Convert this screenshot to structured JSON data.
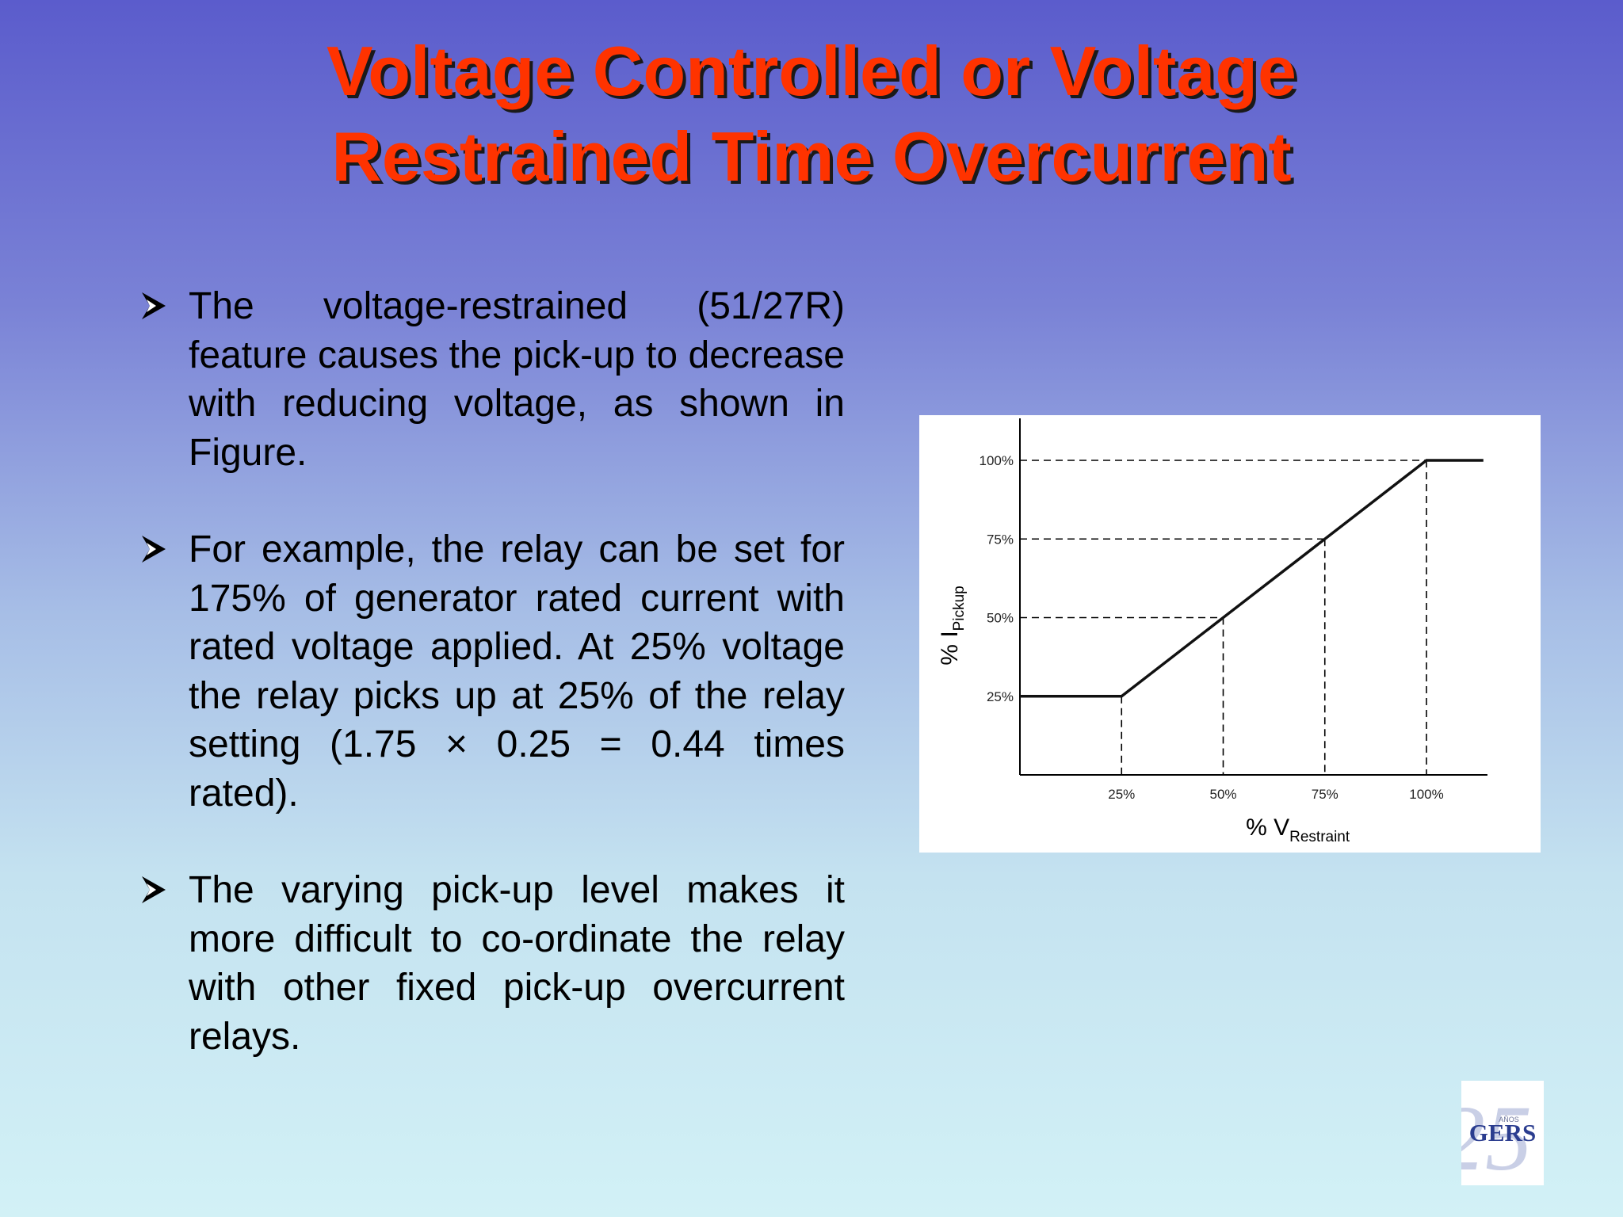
{
  "title": {
    "line1": "Voltage Controlled or Voltage",
    "line2": "Restrained Time Overcurrent"
  },
  "bullets": [
    "The voltage-restrained (51/27R) feature causes the pick-up to decrease with reducing voltage, as shown in Figure.",
    "For example, the relay can be set for 175% of generator rated current with rated voltage applied. At 25% voltage the relay picks up at 25% of the relay setting (1.75 × 0.25 = 0.44 times rated).",
    "The varying pick-up level makes it more difficult to co-ordinate the relay with other fixed pick-up overcurrent relays."
  ],
  "colors": {
    "title": "#ff3300",
    "title_shadow": "#1a1a1a",
    "bg_top": "#5b5ccc",
    "bg_bottom": "#d2f1f6",
    "logo_text": "#2b3d8f"
  },
  "icons": {
    "bullet": "arrowhead-bullet-icon"
  },
  "chart_data": {
    "type": "line",
    "x_label_main": "% V",
    "x_label_sub": "Restraint",
    "y_label_main": "% I",
    "y_label_sub": "Pickup",
    "x_ticks": [
      "25%",
      "50%",
      "75%",
      "100%"
    ],
    "y_ticks": [
      "25%",
      "50%",
      "75%",
      "100%"
    ],
    "xlim": [
      0,
      115
    ],
    "ylim": [
      0,
      104
    ],
    "series": [
      {
        "x": [
          0,
          25,
          50,
          75,
          100,
          114
        ],
        "y": [
          25,
          25,
          50,
          75,
          100,
          100
        ]
      }
    ],
    "reference_lines": "dashed"
  },
  "logo": {
    "number": "25",
    "small_text": "AÑOS",
    "text": "GERS"
  }
}
